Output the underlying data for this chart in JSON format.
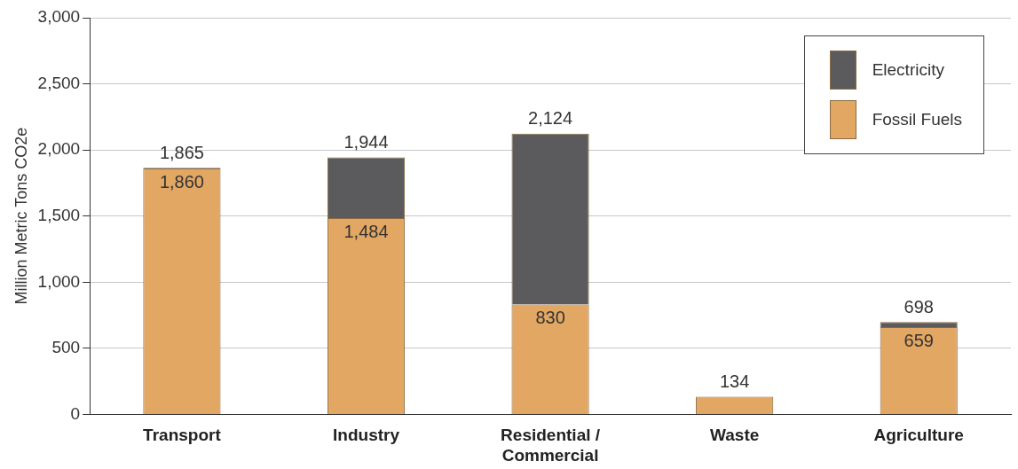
{
  "chart_data": {
    "type": "bar",
    "stacked": true,
    "categories": [
      "Transport",
      "Industry",
      "Residential / Commercial",
      "Waste",
      "Agriculture"
    ],
    "ylabel": "Million Metric Tons CO2e",
    "ylim": [
      0,
      3000
    ],
    "yticks": [
      {
        "value": 0,
        "label": "0"
      },
      {
        "value": 500,
        "label": "500"
      },
      {
        "value": 1000,
        "label": "1,000"
      },
      {
        "value": 1500,
        "label": "1,500"
      },
      {
        "value": 2000,
        "label": "2,000"
      },
      {
        "value": 2500,
        "label": "2,500"
      },
      {
        "value": 3000,
        "label": "3,000"
      }
    ],
    "series": [
      {
        "name": "Fossil Fuels",
        "color": "#e3a764",
        "values": [
          1860,
          1484,
          830,
          134,
          659
        ],
        "value_labels": [
          "1,860",
          "1,484",
          "830",
          null,
          "659"
        ]
      },
      {
        "name": "Electricity",
        "color": "#5b5b5d",
        "values": [
          5,
          460,
          1294,
          null,
          39
        ]
      }
    ],
    "totals": [
      "1,865",
      "1,944",
      "2,124",
      "134",
      "698"
    ],
    "grid": "y",
    "legend": "top right"
  }
}
